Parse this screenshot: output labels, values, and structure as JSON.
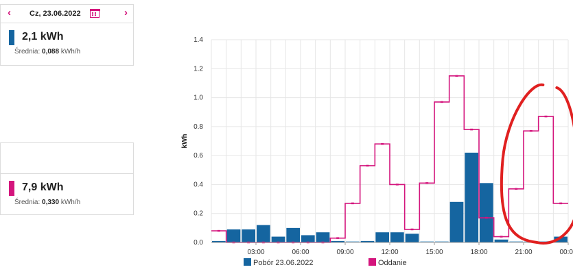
{
  "consumption_card": {
    "prev_label": "‹",
    "next_label": "›",
    "date": "Cz, 23.06.2022",
    "calendar_icon": "calendar-icon",
    "total": "2,1 kWh",
    "avg_label": "Średnia:",
    "avg_value": "0,088",
    "avg_unit": "kWh/h",
    "color": "#1565a0"
  },
  "export_card": {
    "total": "7,9 kWh",
    "avg_label": "Średnia:",
    "avg_value": "0,330",
    "avg_unit": "kWh/h",
    "color": "#d4157d"
  },
  "legend": {
    "series1": "Pobór 23.06.2022",
    "series2": "Oddanie"
  },
  "chart_data": {
    "type": "bar",
    "ylabel": "kWh",
    "ylim": [
      0,
      1.4
    ],
    "yticks": [
      "0.0",
      "0.2",
      "0.4",
      "0.6",
      "0.8",
      "1.0",
      "1.2",
      "1.4"
    ],
    "xticks": [
      "03:00",
      "06:00",
      "09:00",
      "12:00",
      "15:00",
      "18:00",
      "21:00",
      "00:00"
    ],
    "hours": 24,
    "grid": true,
    "series": [
      {
        "name": "Pobór 23.06.2022",
        "color": "#1565a0",
        "values": [
          0.01,
          0.09,
          0.09,
          0.12,
          0.04,
          0.1,
          0.05,
          0.07,
          0.01,
          0.0,
          0.01,
          0.07,
          0.07,
          0.06,
          0.0,
          0.0,
          0.28,
          0.62,
          0.41,
          0.02,
          0.0,
          0.0,
          0.0,
          0.04
        ]
      },
      {
        "name": "Oddanie",
        "color": "#d4157d",
        "values": [
          0.08,
          0.0,
          0.0,
          0.0,
          0.0,
          0.0,
          0.0,
          0.0,
          0.03,
          0.27,
          0.53,
          0.68,
          0.4,
          0.09,
          0.41,
          0.97,
          1.15,
          0.78,
          0.17,
          0.04,
          0.37,
          0.77,
          0.87,
          0.27
        ]
      }
    ],
    "annotation": {
      "type": "hand-drawn-circle",
      "color": "#e02020",
      "hours": "20:00-24:00"
    }
  }
}
